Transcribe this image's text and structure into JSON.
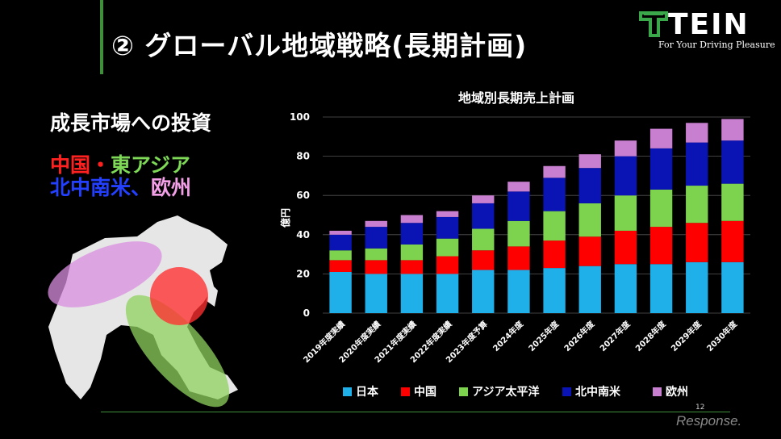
{
  "slide": {
    "title": "② グローバル地域戦略(長期計画)",
    "invest_heading": "成長市場への投資",
    "region_line1": {
      "part1": "中国",
      "sep": "・",
      "part2": "東アジア"
    },
    "region_line2": {
      "part1": "北中南米",
      "sep": "、",
      "part2": "欧州"
    },
    "page_number": "12"
  },
  "logo": {
    "name": "TEIN",
    "tagline": "For Your Driving Pleasure"
  },
  "watermark": "Response.",
  "colors": {
    "japan": "#1fb0ea",
    "china": "#ff0000",
    "asia_pacific": "#7ed34e",
    "north_central_south_america": "#0a14b4",
    "europe": "#c97fd0",
    "accent_green": "#3f8f3a"
  },
  "chart_data": {
    "type": "bar",
    "stacked": true,
    "title": "地域別長期売上計画",
    "ylabel": "億円",
    "xlabel": "",
    "ylim": [
      0,
      100
    ],
    "yticks": [
      0,
      20,
      40,
      60,
      80,
      100
    ],
    "grid": true,
    "legend": "bottom",
    "categories": [
      "2019年度実績",
      "2020年度実績",
      "2021年度実績",
      "2022年度実績",
      "2023年度予算",
      "2024年度",
      "2025年度",
      "2026年度",
      "2027年度",
      "2028年度",
      "2029年度",
      "2030年度"
    ],
    "series": [
      {
        "name": "日本",
        "color": "#1fb0ea",
        "values": [
          21,
          20,
          20,
          20,
          22,
          22,
          23,
          24,
          25,
          25,
          26,
          26
        ]
      },
      {
        "name": "中国",
        "color": "#ff0000",
        "values": [
          6,
          7,
          7,
          9,
          10,
          12,
          14,
          15,
          17,
          19,
          20,
          21
        ]
      },
      {
        "name": "アジア太平洋",
        "color": "#7ed34e",
        "values": [
          5,
          6,
          8,
          9,
          11,
          13,
          15,
          17,
          18,
          19,
          19,
          19
        ]
      },
      {
        "name": "北中南米",
        "color": "#0a14b4",
        "values": [
          8,
          11,
          11,
          11,
          13,
          15,
          17,
          18,
          20,
          21,
          22,
          22
        ]
      },
      {
        "name": "欧州",
        "color": "#c97fd0",
        "values": [
          2,
          3,
          4,
          3,
          4,
          5,
          6,
          7,
          8,
          10,
          10,
          11
        ]
      }
    ]
  }
}
